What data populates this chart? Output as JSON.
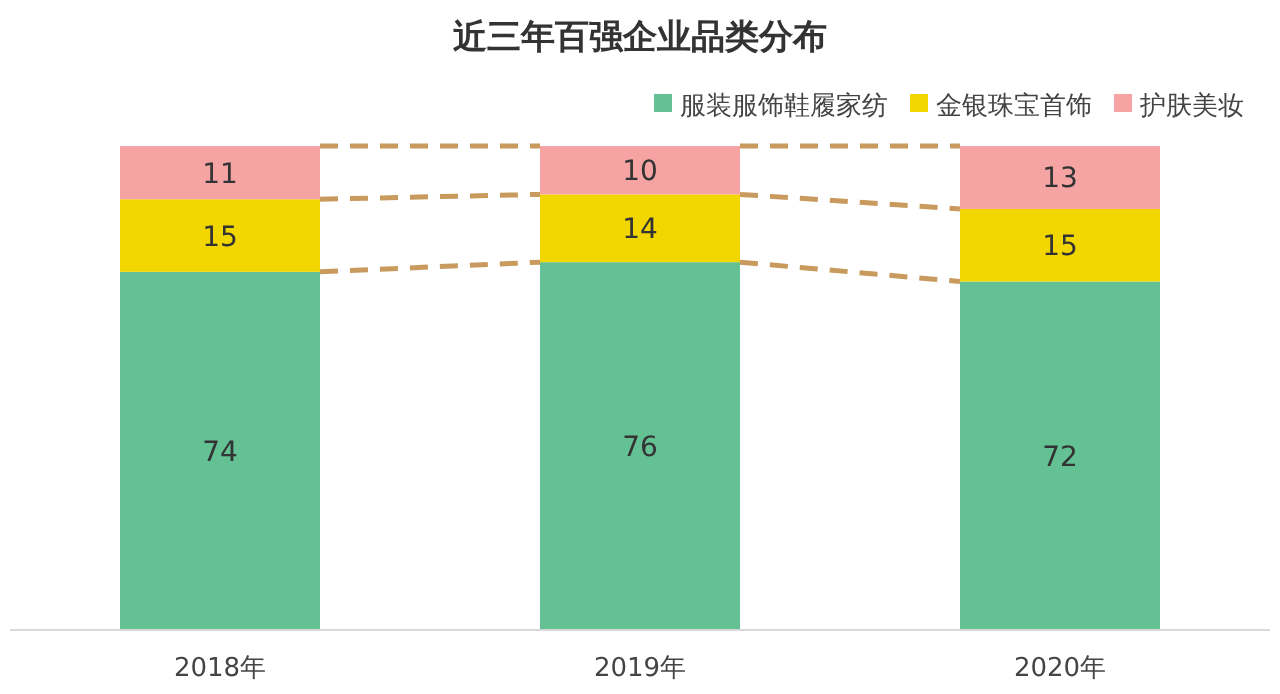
{
  "chart_data": {
    "type": "bar",
    "title": "近三年百强企业品类分布",
    "categories": [
      "2018年",
      "2019年",
      "2020年"
    ],
    "stacked": true,
    "data_labels": true,
    "legend": "top right",
    "series": [
      {
        "name": "服装服饰鞋履家纺",
        "color": "#63c194",
        "values": [
          74,
          76,
          72
        ]
      },
      {
        "name": "金银珠宝首饰",
        "color": "#f2d600",
        "values": [
          15,
          14,
          15
        ]
      },
      {
        "name": "护肤美妆",
        "color": "#f5a3a3",
        "values": [
          11,
          10,
          13
        ]
      }
    ]
  }
}
